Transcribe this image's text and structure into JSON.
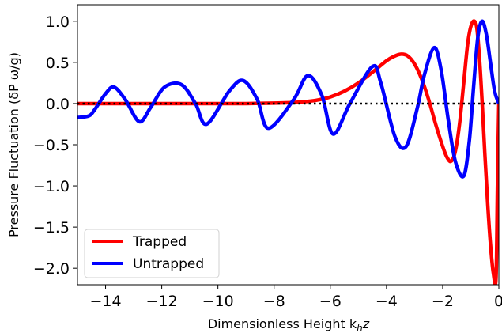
{
  "chart_data": {
    "type": "line",
    "title": "",
    "xlabel": "Dimensionless Height  k",
    "xlabel_sub": "h",
    "xlabel_tail": "z",
    "ylabel": "Pressure Fluctuation (δP ω/g)",
    "xlim": [
      -15,
      0
    ],
    "ylim": [
      -2.2,
      1.2
    ],
    "xticks": [
      -14,
      -12,
      -10,
      -8,
      -6,
      -4,
      -2,
      0
    ],
    "xtick_labels": [
      "−14",
      "−12",
      "−10",
      "−8",
      "−6",
      "−4",
      "−2",
      "0"
    ],
    "yticks": [
      1.0,
      0.5,
      0.0,
      -0.5,
      -1.0,
      -1.5,
      -2.0
    ],
    "ytick_labels": [
      "1.0",
      "0.5",
      "0.0",
      "−0.5",
      "−1.0",
      "−1.5",
      "−2.0"
    ],
    "grid": false,
    "legend_position": "lower-left",
    "reference_line": {
      "y": 0,
      "style": "dotted",
      "color": "#000000"
    },
    "series": [
      {
        "name": "Trapped",
        "color": "#ff0000",
        "x": [
          -15,
          -14,
          -13,
          -12,
          -11,
          -10,
          -9,
          -8,
          -7.5,
          -7,
          -6.5,
          -6,
          -5.5,
          -5,
          -4.5,
          -4,
          -3.75,
          -3.5,
          -3.25,
          -3,
          -2.75,
          -2.5,
          -2.25,
          -2,
          -1.85,
          -1.7,
          -1.55,
          -1.4,
          -1.25,
          -1.1,
          -0.95,
          -0.8,
          -0.7,
          -0.6,
          -0.5,
          -0.4,
          -0.3,
          -0.2,
          -0.1,
          -0.05,
          0
        ],
        "y": [
          0,
          0,
          0,
          0,
          0,
          0,
          0,
          0.005,
          0.01,
          0.02,
          0.04,
          0.08,
          0.15,
          0.25,
          0.38,
          0.52,
          0.57,
          0.6,
          0.58,
          0.48,
          0.3,
          0.05,
          -0.25,
          -0.52,
          -0.65,
          -0.7,
          -0.58,
          -0.25,
          0.25,
          0.75,
          0.98,
          0.95,
          0.6,
          0.05,
          -0.6,
          -1.2,
          -1.7,
          -2.05,
          -2.12,
          -1.0,
          0.0
        ]
      },
      {
        "name": "Untrapped",
        "color": "#0000ff",
        "x": [
          -15,
          -14.6,
          -14.4,
          -14,
          -13.7,
          -13.3,
          -12.8,
          -12.4,
          -11.9,
          -11.3,
          -10.8,
          -10.4,
          -9.6,
          -9.1,
          -8.6,
          -8.2,
          -7.3,
          -6.8,
          -6.3,
          -5.9,
          -5.3,
          -4.5,
          -4.2,
          -3.7,
          -3.3,
          -2.9,
          -2.65,
          -2.3,
          -2.05,
          -1.8,
          -1.55,
          -1.25,
          -1.05,
          -0.9,
          -0.75,
          -0.6,
          -0.45,
          -0.3,
          -0.15,
          0
        ],
        "y": [
          -0.17,
          -0.15,
          -0.08,
          0.12,
          0.2,
          0.05,
          -0.22,
          -0.05,
          0.2,
          0.23,
          0.0,
          -0.25,
          0.15,
          0.28,
          0.05,
          -0.3,
          0.05,
          0.34,
          0.1,
          -0.37,
          0.0,
          0.45,
          0.25,
          -0.4,
          -0.52,
          -0.05,
          0.35,
          0.68,
          0.4,
          -0.2,
          -0.7,
          -0.88,
          -0.45,
          0.2,
          0.8,
          1.0,
          0.85,
          0.5,
          0.15,
          0.0
        ]
      }
    ]
  }
}
